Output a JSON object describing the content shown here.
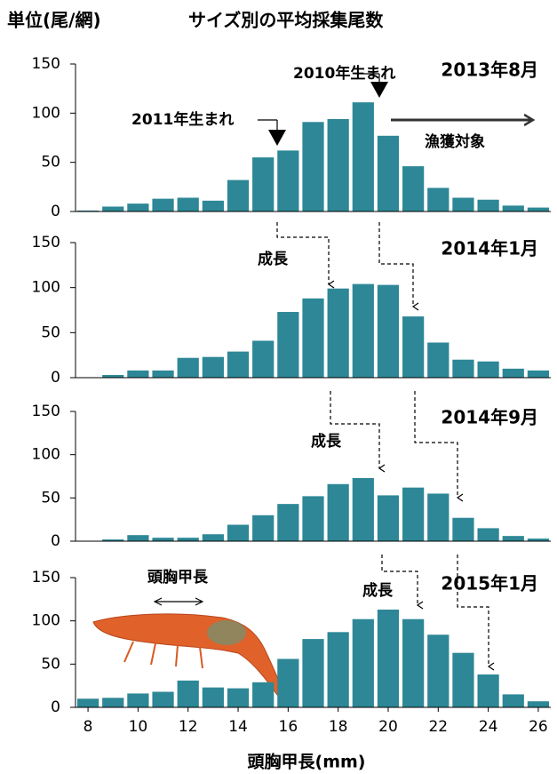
{
  "unit_label": "単位(尾/網)",
  "title": "サイズ別の平均採集尾数",
  "x_label": "頭胸甲長(mm)",
  "chart_data": [
    {
      "type": "bar",
      "label": "2013年8月",
      "color": "#2d8796",
      "x": [
        8,
        9,
        10,
        11,
        12,
        13,
        14,
        15,
        16,
        17,
        18,
        19,
        20,
        21,
        22,
        23,
        24,
        25,
        26
      ],
      "values": [
        1,
        5,
        8,
        13,
        14,
        11,
        32,
        55,
        62,
        91,
        94,
        111,
        77,
        46,
        24,
        14,
        12,
        6,
        4
      ],
      "xlim": [
        7.5,
        26.5
      ],
      "ylim": [
        0,
        150
      ],
      "yticks": [
        0,
        50,
        100,
        150
      ],
      "annotations": [
        "2010年生まれ",
        "2011年生まれ",
        "漁獲対象"
      ]
    },
    {
      "type": "bar",
      "label": "2014年1月",
      "color": "#2d8796",
      "x": [
        8,
        9,
        10,
        11,
        12,
        13,
        14,
        15,
        16,
        17,
        18,
        19,
        20,
        21,
        22,
        23,
        24,
        25,
        26
      ],
      "values": [
        0,
        3,
        8,
        8,
        22,
        23,
        29,
        41,
        73,
        88,
        99,
        104,
        103,
        68,
        39,
        20,
        18,
        10,
        8
      ],
      "xlim": [
        7.5,
        26.5
      ],
      "ylim": [
        0,
        150
      ],
      "yticks": [
        0,
        50,
        100,
        150
      ],
      "annotations": [
        "成長"
      ]
    },
    {
      "type": "bar",
      "label": "2014年9月",
      "color": "#2d8796",
      "x": [
        8,
        9,
        10,
        11,
        12,
        13,
        14,
        15,
        16,
        17,
        18,
        19,
        20,
        21,
        22,
        23,
        24,
        25,
        26
      ],
      "values": [
        0,
        2,
        7,
        4,
        4,
        8,
        19,
        30,
        43,
        52,
        66,
        73,
        53,
        62,
        55,
        27,
        15,
        6,
        3
      ],
      "xlim": [
        7.5,
        26.5
      ],
      "ylim": [
        0,
        150
      ],
      "yticks": [
        0,
        50,
        100,
        150
      ],
      "annotations": [
        "成長"
      ]
    },
    {
      "type": "bar",
      "label": "2015年1月",
      "color": "#2d8796",
      "x": [
        8,
        9,
        10,
        11,
        12,
        13,
        14,
        15,
        16,
        17,
        18,
        19,
        20,
        21,
        22,
        23,
        24,
        25,
        26
      ],
      "values": [
        10,
        11,
        16,
        18,
        31,
        23,
        22,
        29,
        56,
        79,
        87,
        102,
        113,
        102,
        84,
        63,
        38,
        15,
        7
      ],
      "xlim": [
        7.5,
        26.5
      ],
      "ylim": [
        0,
        150
      ],
      "yticks": [
        0,
        50,
        100,
        150
      ],
      "xticks": [
        8,
        10,
        12,
        14,
        16,
        18,
        20,
        22,
        24,
        26
      ],
      "annotations": [
        "成長",
        "頭胸甲長"
      ]
    }
  ]
}
